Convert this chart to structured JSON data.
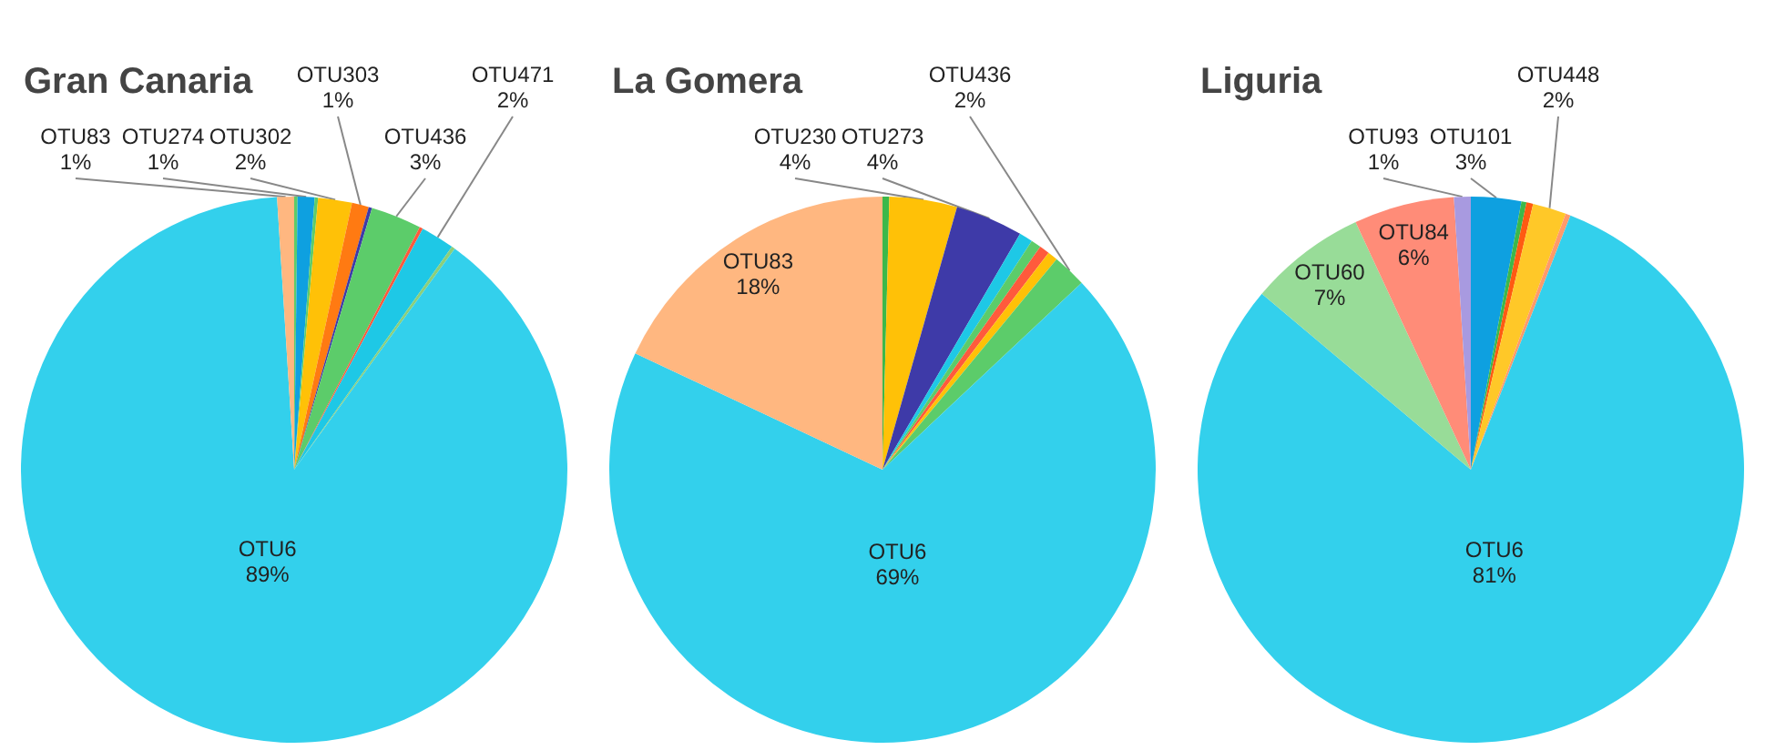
{
  "chart_data": [
    {
      "type": "pie",
      "title": "Gran Canaria",
      "categories": [
        null,
        "OTU274",
        null,
        "OTU302",
        "OTU303",
        null,
        "OTU436",
        null,
        "OTU471",
        null,
        "OTU6",
        "OTU83"
      ],
      "values": [
        0.2,
        1,
        0.2,
        2,
        1,
        0.2,
        3,
        0.2,
        2,
        0.2,
        89,
        1
      ],
      "value_labels": [
        null,
        "1%",
        null,
        "2%",
        "1%",
        null,
        "3%",
        null,
        "2%",
        null,
        "89%",
        "1%"
      ],
      "colors": [
        "#5ccc6a",
        "#0ea0e0",
        "#5ccc6a",
        "#ffc107",
        "#ff7a12",
        "#3e3aa8",
        "#5ccc6a",
        "#ff5a3c",
        "#1ec8e6",
        "#8ccf7a",
        "#33d0ec",
        "#ffb780"
      ]
    },
    {
      "type": "pie",
      "title": "La Gomera",
      "categories": [
        null,
        "OTU230",
        "OTU273",
        null,
        null,
        null,
        null,
        "OTU436",
        "OTU6",
        "OTU83"
      ],
      "values": [
        0.4,
        4,
        4,
        0.8,
        0.6,
        0.6,
        0.6,
        2,
        69,
        18
      ],
      "value_labels": [
        null,
        "4%",
        "4%",
        null,
        null,
        null,
        null,
        "2%",
        "69%",
        "18%"
      ],
      "colors": [
        "#3cb84a",
        "#ffc107",
        "#3e3aa8",
        "#1ec8e6",
        "#5ccc6a",
        "#ff5a3c",
        "#ffc107",
        "#5ccc6a",
        "#33d0ec",
        "#ffb780"
      ]
    },
    {
      "type": "pie",
      "title": "Liguria",
      "categories": [
        "OTU101",
        null,
        null,
        "OTU448",
        null,
        "OTU6",
        "OTU60",
        "OTU84",
        "OTU93"
      ],
      "values": [
        3,
        0.3,
        0.4,
        2,
        0.3,
        81,
        7,
        6,
        1
      ],
      "value_labels": [
        "3%",
        null,
        null,
        "2%",
        null,
        "81%",
        "7%",
        "6%",
        "1%"
      ],
      "colors": [
        "#0ea0e0",
        "#3cb84a",
        "#ff5a12",
        "#ffc828",
        "#ff9a6a",
        "#33d0ec",
        "#98dc98",
        "#ff8c78",
        "#a89ae0"
      ]
    }
  ]
}
